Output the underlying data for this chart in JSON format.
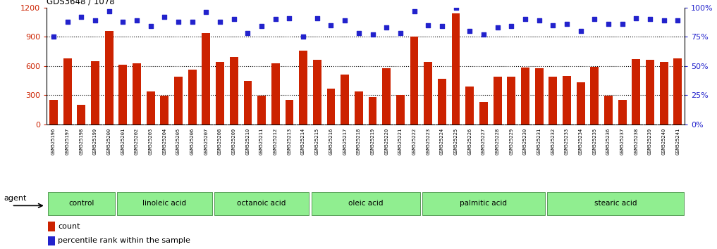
{
  "title": "GDS3648 / 1078",
  "samples": [
    "GSM525196",
    "GSM525197",
    "GSM525198",
    "GSM525199",
    "GSM525200",
    "GSM525201",
    "GSM525202",
    "GSM525203",
    "GSM525204",
    "GSM525205",
    "GSM525206",
    "GSM525207",
    "GSM525208",
    "GSM525209",
    "GSM525210",
    "GSM525211",
    "GSM525212",
    "GSM525213",
    "GSM525214",
    "GSM525215",
    "GSM525216",
    "GSM525217",
    "GSM525218",
    "GSM525219",
    "GSM525220",
    "GSM525221",
    "GSM525222",
    "GSM525223",
    "GSM525224",
    "GSM525225",
    "GSM525226",
    "GSM525227",
    "GSM525228",
    "GSM525229",
    "GSM525230",
    "GSM525231",
    "GSM525232",
    "GSM525233",
    "GSM525234",
    "GSM525235",
    "GSM525236",
    "GSM525237",
    "GSM525238",
    "GSM525239",
    "GSM525240",
    "GSM525241"
  ],
  "bar_values": [
    250,
    680,
    200,
    650,
    960,
    610,
    630,
    340,
    295,
    490,
    560,
    940,
    640,
    690,
    450,
    295,
    630,
    250,
    760,
    660,
    365,
    510,
    340,
    280,
    580,
    305,
    900,
    640,
    470,
    1140,
    390,
    230,
    490,
    490,
    585,
    580,
    490,
    495,
    430,
    590,
    295,
    250,
    670,
    665,
    640,
    680
  ],
  "percentile_values": [
    75,
    88,
    92,
    89,
    97,
    88,
    89,
    84,
    92,
    88,
    88,
    96,
    88,
    90,
    78,
    84,
    90,
    91,
    75,
    91,
    85,
    89,
    78,
    77,
    83,
    78,
    97,
    85,
    84,
    100,
    80,
    77,
    83,
    84,
    90,
    89,
    85,
    86,
    80,
    90,
    86,
    86,
    91,
    90,
    89,
    89
  ],
  "groups": [
    {
      "label": "control",
      "start": 0,
      "end": 4
    },
    {
      "label": "linoleic acid",
      "start": 5,
      "end": 11
    },
    {
      "label": "octanoic acid",
      "start": 12,
      "end": 18
    },
    {
      "label": "oleic acid",
      "start": 19,
      "end": 26
    },
    {
      "label": "palmitic acid",
      "start": 27,
      "end": 35
    },
    {
      "label": "stearic acid",
      "start": 36,
      "end": 45
    }
  ],
  "bar_color": "#cc2200",
  "dot_color": "#2222cc",
  "ylim_left": [
    0,
    1200
  ],
  "ylim_right": [
    0,
    100
  ],
  "yticks_left": [
    0,
    300,
    600,
    900,
    1200
  ],
  "yticks_right": [
    0,
    25,
    50,
    75,
    100
  ],
  "grid_values": [
    300,
    600,
    900
  ],
  "background_color": "#ffffff",
  "group_fill_color": "#90ee90",
  "group_edge_color": "#559955",
  "tick_bg_color": "#d4d4d4",
  "agent_label": "agent"
}
